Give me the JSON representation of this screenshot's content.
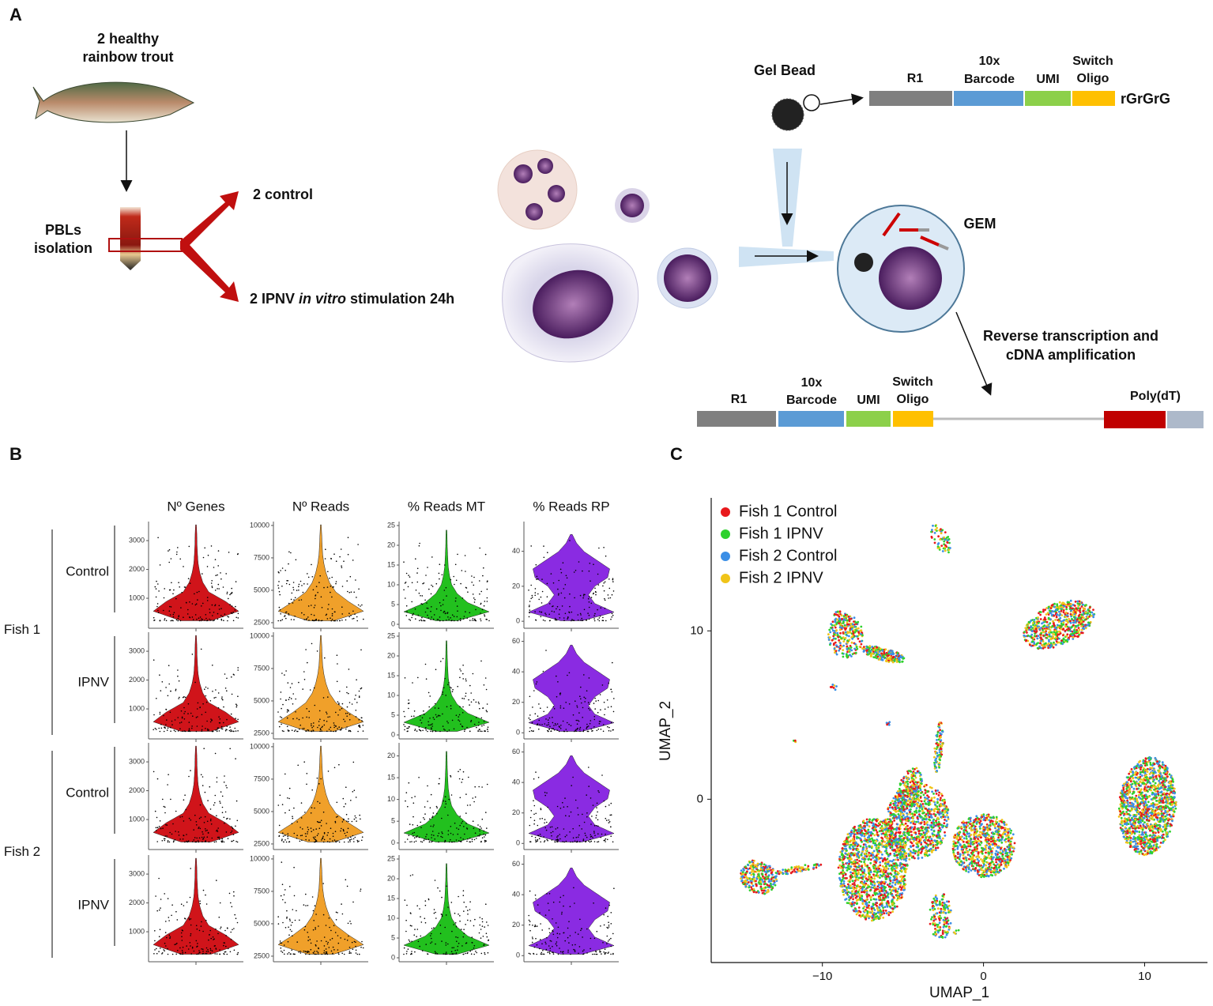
{
  "panel_a": {
    "label": "A",
    "fish_label": [
      "2 healthy",
      "rainbow trout"
    ],
    "pbls_label": [
      "PBLs",
      "isolation"
    ],
    "control": "2 control",
    "ipnv": {
      "pre": "2 IPNV ",
      "italic": "in vitro",
      "post": " stimulation 24h"
    },
    "gel_bead": "Gel Bead",
    "gem": "GEM",
    "rt": [
      "Reverse transcription and",
      "cDNA amplification"
    ],
    "top_construct": {
      "r1": "R1",
      "barcode": [
        "10x",
        "Barcode"
      ],
      "umi": "UMI",
      "switch": [
        "Switch",
        "Oligo"
      ],
      "tail": "rGrGrG"
    },
    "bottom_construct": {
      "r1": "R1",
      "barcode": [
        "10x",
        "Barcode"
      ],
      "umi": "UMI",
      "switch": [
        "Switch",
        "Oligo"
      ],
      "polydt": "Poly(dT)"
    }
  },
  "panel_b": {
    "label": "B",
    "columns": [
      {
        "title": "Nº Genes",
        "color": "#d0141a"
      },
      {
        "title": "Nº Reads",
        "color": "#f0a02a"
      },
      {
        "title": "% Reads MT",
        "color": "#22c01e"
      },
      {
        "title": "% Reads RP",
        "color": "#8a2be2"
      }
    ],
    "groups": [
      {
        "name": "Fish 1",
        "conditions": [
          "Control",
          "IPNV"
        ]
      },
      {
        "name": "Fish 2",
        "conditions": [
          "Control",
          "IPNV"
        ]
      }
    ],
    "axes": [
      [
        {
          "ylim": [
            -40,
            3660
          ],
          "yticks": [
            1000,
            2000,
            3000
          ]
        },
        {
          "ylim": [
            2070,
            10300
          ],
          "yticks": [
            2500,
            5000,
            7500,
            10000
          ]
        },
        {
          "ylim": [
            -1,
            26
          ],
          "yticks": [
            0,
            5,
            10,
            15,
            20,
            25
          ]
        },
        {
          "ylim": [
            -4,
            57
          ],
          "yticks": [
            0,
            20,
            40
          ]
        }
      ],
      [
        {
          "ylim": [
            -40,
            3660
          ],
          "yticks": [
            1000,
            2000,
            3000
          ]
        },
        {
          "ylim": [
            2070,
            10300
          ],
          "yticks": [
            2500,
            5000,
            7500,
            10000
          ]
        },
        {
          "ylim": [
            -1,
            26
          ],
          "yticks": [
            0,
            5,
            10,
            15,
            20,
            25
          ]
        },
        {
          "ylim": [
            -4,
            66
          ],
          "yticks": [
            0,
            20,
            40,
            60
          ]
        }
      ],
      [
        {
          "ylim": [
            -40,
            3660
          ],
          "yticks": [
            1000,
            2000,
            3000
          ]
        },
        {
          "ylim": [
            2070,
            10300
          ],
          "yticks": [
            2500,
            5000,
            7500,
            10000
          ]
        },
        {
          "ylim": [
            -1.5,
            23
          ],
          "yticks": [
            0,
            5,
            10,
            15,
            20
          ]
        },
        {
          "ylim": [
            -4,
            66
          ],
          "yticks": [
            0,
            20,
            40,
            60
          ]
        }
      ],
      [
        {
          "ylim": [
            -40,
            3660
          ],
          "yticks": [
            1000,
            2000,
            3000
          ]
        },
        {
          "ylim": [
            2070,
            10300
          ],
          "yticks": [
            2500,
            5000,
            7500,
            10000
          ]
        },
        {
          "ylim": [
            -1,
            26
          ],
          "yticks": [
            0,
            5,
            10,
            15,
            20,
            25
          ]
        },
        {
          "ylim": [
            -4,
            66
          ],
          "yticks": [
            0,
            20,
            40,
            60
          ]
        }
      ]
    ]
  },
  "chart_data": {
    "type": "scatter",
    "label": "C",
    "xlabel": "UMAP_1",
    "ylabel": "UMAP_2",
    "xlim": [
      -16.9,
      13.9
    ],
    "ylim": [
      -9.7,
      17.9
    ],
    "xticks": [
      {
        "value": -10,
        "label": "−10"
      },
      0,
      10
    ],
    "yticks": [
      0,
      10
    ],
    "series": [
      {
        "name": "Fish 1 Control",
        "color": "#e8191c"
      },
      {
        "name": "Fish 1 IPNV",
        "color": "#2ed12e"
      },
      {
        "name": "Fish 2 Control",
        "color": "#3a8ee6"
      },
      {
        "name": "Fish 2 IPNV",
        "color": "#f0c419"
      }
    ]
  }
}
